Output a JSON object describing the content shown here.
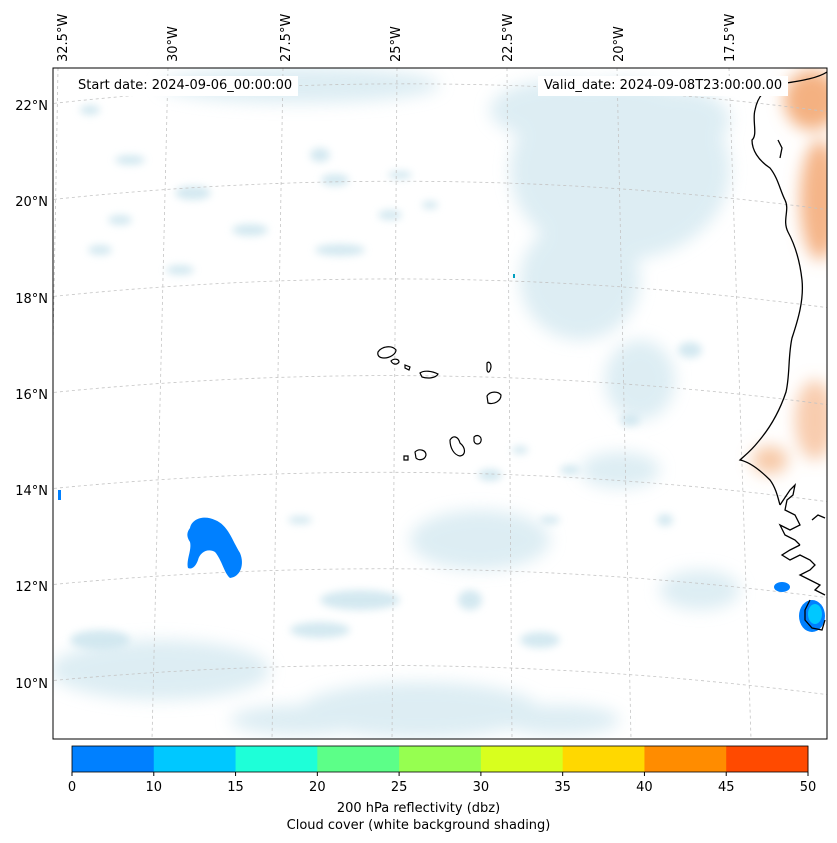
{
  "header": {
    "start_date": "Start date: 2024-09-06_00:00:00",
    "valid_date": "Valid_date: 2024-09-08T23:00:00.00"
  },
  "map": {
    "lon_labels": [
      "32.5°W",
      "30°W",
      "27.5°W",
      "25°W",
      "22.5°W",
      "20°W",
      "17.5°W"
    ],
    "lat_labels": [
      "22°N",
      "20°N",
      "18°N",
      "16°N",
      "14°N",
      "12°N",
      "10°N"
    ],
    "lon_extent": [
      -33.0,
      -15.5
    ],
    "lat_extent": [
      8.9,
      22.8
    ],
    "gridlines": "dashed",
    "colors": {
      "land_heat": "#f2a36b",
      "cloud_shading": "#cfe6ef",
      "coastline": "#000000"
    }
  },
  "colorbar": {
    "ticks": [
      "0",
      "10",
      "15",
      "20",
      "25",
      "30",
      "35",
      "40",
      "45",
      "50"
    ],
    "colors": [
      "#0080ff",
      "#00c8ff",
      "#1effd8",
      "#5cff88",
      "#96ff50",
      "#d8ff1e",
      "#ffd800",
      "#ff8c00",
      "#ff4a00"
    ],
    "label_line1": "200 hPa reflectivity (dbz)",
    "label_line2": "Cloud cover (white background shading)"
  }
}
